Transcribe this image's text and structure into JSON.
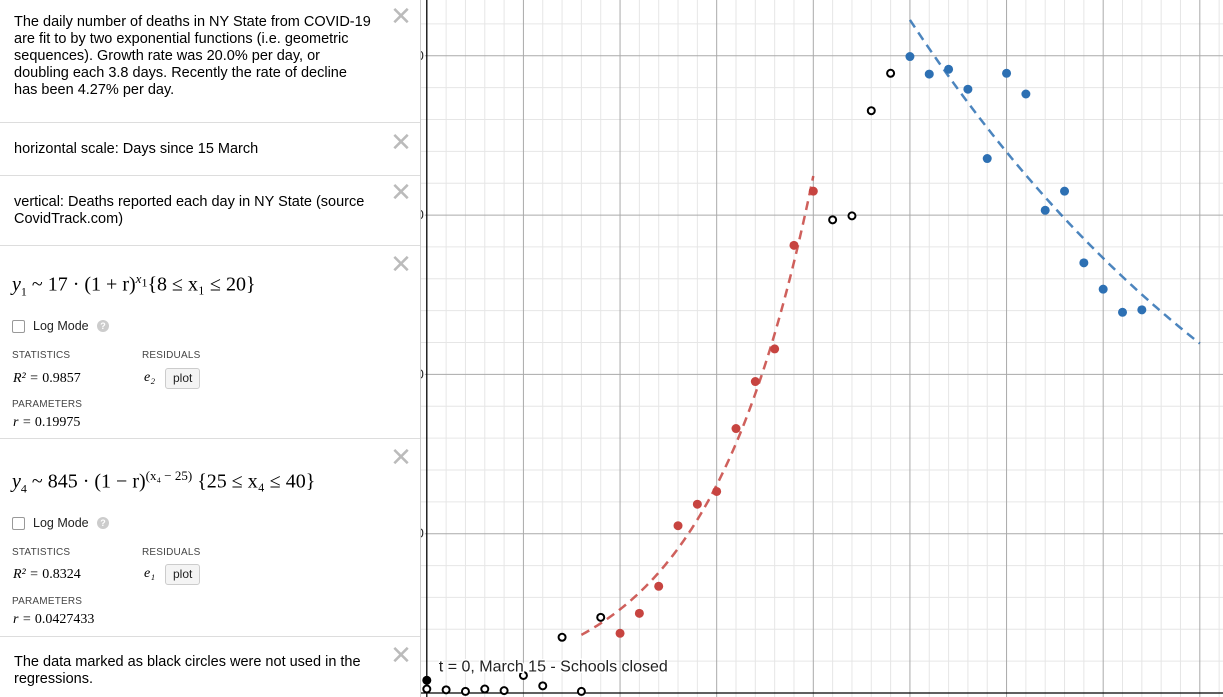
{
  "notes": {
    "intro": "The daily number of deaths in NY State from COVID-19 are fit to by two exponential functions (i.e. geometric sequences). Growth rate was 20.0% per day, or doubling each 3.8 days. Recently the rate of decline has been 4.27% per day.",
    "horizontal": "horizontal scale: Days since 15 March",
    "vertical": "vertical: Deaths reported each day in NY State (source CovidTrack.com)",
    "footer": "The data marked as black circles were not used in the regressions."
  },
  "close_glyph": "✕",
  "regression1": {
    "y": "y",
    "y_sub": "1",
    "coef": "17",
    "base": "(1 + r)",
    "exp_var": "x",
    "exp_sub": "1",
    "restriction": "{8 ≤ x₁ ≤ 20}",
    "log_mode": "Log Mode",
    "statistics_label": "STATISTICS",
    "residuals_label": "RESIDUALS",
    "r2_label": "R² = ",
    "r2": "0.9857",
    "residual_var": "e₂",
    "plot_label": "plot",
    "parameters_label": "PARAMETERS",
    "r_label": "r = ",
    "r": "0.19975"
  },
  "regression2": {
    "y": "y",
    "y_sub": "4",
    "coef": "845",
    "base": "(1 − r)",
    "exponent": "(x₄ − 25)",
    "restriction": "{25 ≤ x₄ ≤ 40}",
    "log_mode": "Log Mode",
    "statistics_label": "STATISTICS",
    "residuals_label": "RESIDUALS",
    "r2_label": "R² = ",
    "r2": "0.8324",
    "residual_var": "e₁",
    "plot_label": "plot",
    "parameters_label": "PARAMETERS",
    "r_label": "r = ",
    "r": "0.0427433"
  },
  "chart_data": {
    "type": "scatter",
    "xlim": [
      -0.3,
      41.2
    ],
    "ylim": [
      -5,
      870
    ],
    "x_ticks": [
      0,
      5,
      10,
      15,
      20,
      25,
      30,
      35,
      40
    ],
    "y_ticks": [
      200,
      400,
      600,
      800
    ],
    "grid": true,
    "annotation": "t = 0, March 15 - Schools closed",
    "annotation_point": [
      0,
      16
    ],
    "colors": {
      "growth": "#c74440",
      "decline": "#2d70b3",
      "excluded": "#000000",
      "grid_major": "#aaaaaa",
      "grid_minor": "#e6e6e6"
    },
    "series": [
      {
        "role": "excluded",
        "style": "open-circle",
        "points": [
          [
            0,
            5
          ],
          [
            1,
            4
          ],
          [
            2,
            2
          ],
          [
            3,
            5
          ],
          [
            4,
            3
          ],
          [
            5,
            22
          ],
          [
            6,
            9
          ],
          [
            7,
            70
          ],
          [
            8,
            2
          ],
          [
            9,
            95
          ],
          [
            21,
            594
          ],
          [
            22,
            599
          ],
          [
            23,
            731
          ],
          [
            24,
            778
          ]
        ]
      },
      {
        "role": "growth",
        "style": "filled-circle",
        "points": [
          [
            10,
            75
          ],
          [
            11,
            100
          ],
          [
            12,
            134
          ],
          [
            13,
            210
          ],
          [
            14,
            237
          ],
          [
            15,
            253
          ],
          [
            16,
            332
          ],
          [
            17,
            391
          ],
          [
            18,
            432
          ],
          [
            19,
            562
          ],
          [
            20,
            630
          ]
        ]
      },
      {
        "role": "decline",
        "style": "filled-circle",
        "points": [
          [
            25,
            799
          ],
          [
            26,
            777
          ],
          [
            27,
            783
          ],
          [
            28,
            758
          ],
          [
            29,
            671
          ],
          [
            30,
            778
          ],
          [
            31,
            752
          ],
          [
            32,
            606
          ],
          [
            33,
            630
          ],
          [
            34,
            540
          ],
          [
            35,
            507
          ],
          [
            36,
            478
          ],
          [
            37,
            481
          ]
        ]
      }
    ],
    "fits": [
      {
        "role": "growth",
        "a": 17,
        "r": 0.19975,
        "sign": 1,
        "shift": 0,
        "x_range": [
          8,
          20
        ]
      },
      {
        "role": "decline",
        "a": 845,
        "r": 0.0427433,
        "sign": -1,
        "shift": 25,
        "x_range": [
          25,
          40
        ]
      }
    ]
  }
}
